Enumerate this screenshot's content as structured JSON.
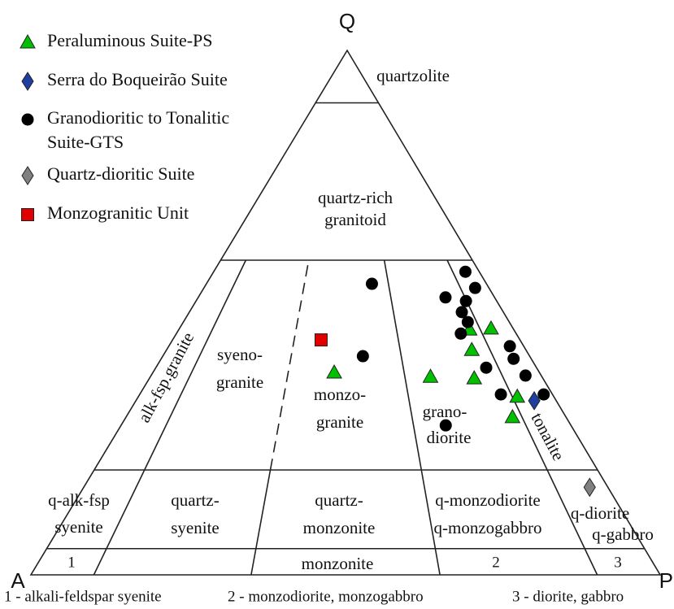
{
  "chart_data": {
    "type": "ternary",
    "apexes": {
      "top": "Q",
      "left": "A",
      "right": "P"
    },
    "series": [
      {
        "name": [
          "Peraluminous Suite-PS"
        ],
        "marker": "triangle",
        "color": "#00c000",
        "q": [
          38.6,
          46.8,
          47.0,
          42.9,
          37.8,
          37.5,
          34.0,
          30.1
        ],
        "a": [
          32.6,
          7.0,
          3.5,
          8.6,
          17.7,
          10.9,
          5.8,
          8.5
        ],
        "p": [
          28.8,
          46.2,
          49.5,
          48.5,
          44.5,
          51.6,
          60.2,
          61.4
        ]
      },
      {
        "name": [
          "Serra do Boqueirão Suite"
        ],
        "marker": "diamond",
        "color": "#1f3f9f",
        "q": [
          33.2
        ],
        "a": [
          3.5
        ],
        "p": [
          63.3
        ]
      },
      {
        "name": [
          "Granodioritic to Tonalitic",
          "Suite-GTS"
        ],
        "marker": "circle",
        "color": "#000000",
        "q": [
          55.5,
          57.8,
          54.7,
          52.9,
          52.2,
          50.1,
          48.2,
          46.0,
          41.7,
          43.6,
          41.2,
          39.5,
          38.0,
          34.4,
          34.4,
          28.5
        ],
        "a": [
          18.2,
          2.2,
          2.2,
          7.8,
          4.9,
          6.6,
          6.6,
          8.8,
          26.5,
          2.2,
          2.8,
          8.0,
          2.5,
          8.2,
          1.4,
          19.9
        ],
        "p": [
          26.3,
          40.0,
          43.1,
          39.3,
          42.9,
          43.3,
          45.2,
          45.2,
          31.8,
          54.2,
          56.0,
          52.5,
          59.5,
          57.4,
          64.2,
          51.6
        ]
      },
      {
        "name": [
          "Quartz-dioritic Suite"
        ],
        "marker": "diamond",
        "color": "#808080",
        "q": [
          16.7
        ],
        "a": [
          2.9
        ],
        "p": [
          80.4
        ]
      },
      {
        "name": [
          "Monzogranitic Unit"
        ],
        "marker": "square",
        "color": "#e00000",
        "q": [
          44.8
        ],
        "a": [
          31.6
        ],
        "p": [
          23.6
        ]
      }
    ],
    "fields": [
      [
        "quartzolite"
      ],
      [
        "quartz-rich",
        "granitoid"
      ],
      [
        "alk-fsp.granite"
      ],
      [
        "syeno-",
        "granite"
      ],
      [
        "monzo-",
        "granite"
      ],
      [
        "grano-",
        "diorite"
      ],
      [
        "tonalite"
      ],
      [
        "q-alk-fsp",
        "syenite"
      ],
      [
        "quartz-",
        "syenite"
      ],
      [
        "quartz-",
        "monzonite"
      ],
      [
        "q-monzodiorite",
        "q-monzogabbro"
      ],
      [
        "q-diorite",
        "q-gabbro"
      ],
      [
        "monzonite"
      ],
      [
        "1"
      ],
      [
        "2"
      ],
      [
        "3"
      ]
    ],
    "footnotes": [
      "1 - alkali-feldspar syenite",
      "2 - monzodiorite, monzogabbro",
      "3 - diorite, gabbro"
    ]
  }
}
